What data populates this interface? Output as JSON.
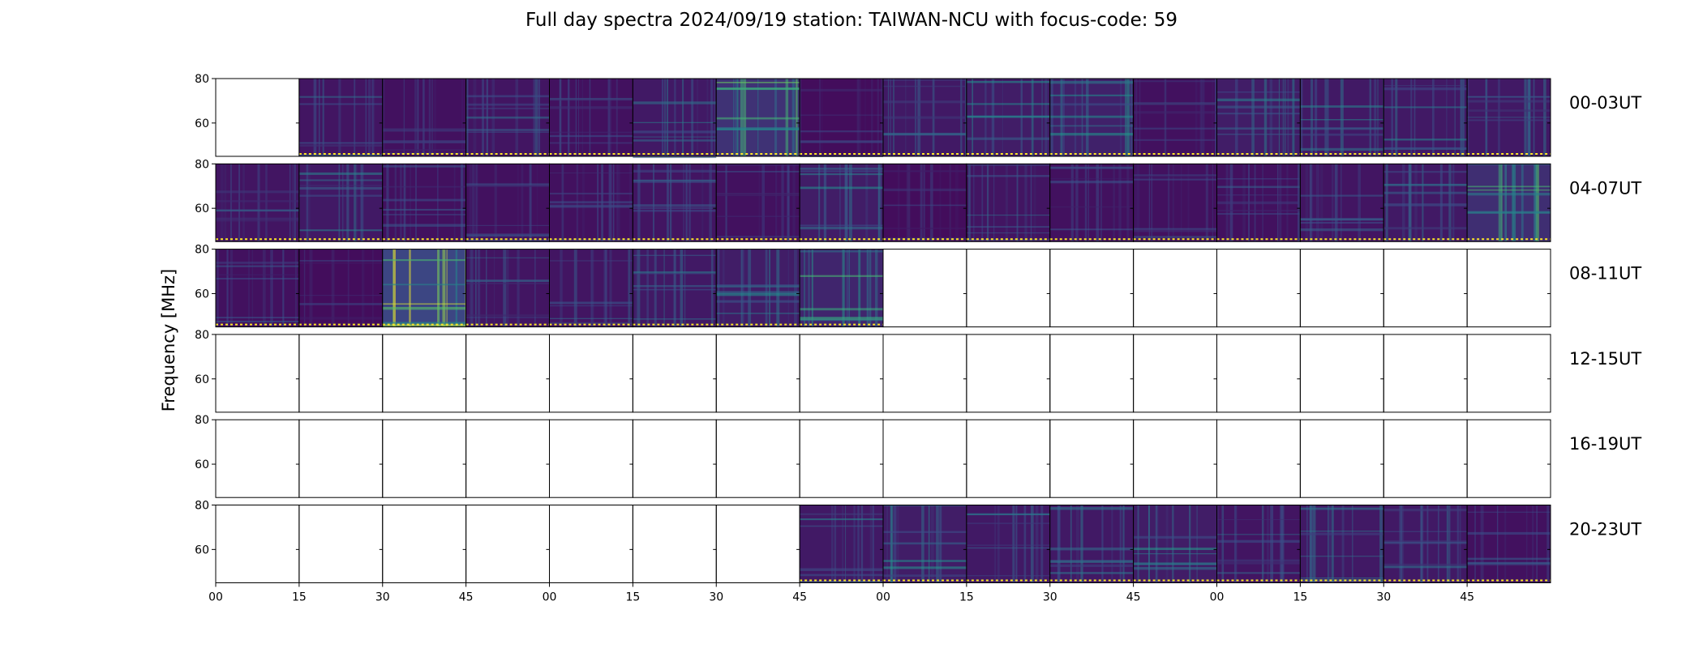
{
  "chart_data": {
    "type": "heatmap",
    "title": "Full day spectra 2024/09/19 station: TAIWAN-NCU with focus-code: 59",
    "ylabel": "Frequency [MHz]",
    "xlabel": "",
    "ylim": [
      45,
      80
    ],
    "yticks": [
      60,
      80
    ],
    "xtick_labels": [
      "00",
      "15",
      "30",
      "45",
      "00",
      "15",
      "30",
      "45",
      "00",
      "15",
      "30",
      "45",
      "00",
      "15",
      "30",
      "45"
    ],
    "colormap": [
      "#440154",
      "#3b528b",
      "#21918c",
      "#5ec962",
      "#fde725"
    ],
    "row_labels": [
      "00-03UT",
      "04-07UT",
      "08-11UT",
      "12-15UT",
      "16-19UT",
      "20-23UT"
    ],
    "panels_per_row": 16,
    "panel_minutes": 15,
    "data_present": [
      [
        0,
        1,
        1,
        1,
        1,
        1,
        1,
        1,
        1,
        1,
        1,
        1,
        1,
        1,
        1,
        1
      ],
      [
        1,
        1,
        1,
        1,
        1,
        1,
        1,
        1,
        1,
        1,
        1,
        1,
        1,
        1,
        1,
        1
      ],
      [
        1,
        1,
        1,
        1,
        1,
        1,
        1,
        1,
        0,
        0,
        0,
        0,
        0,
        0,
        0,
        0
      ],
      [
        0,
        0,
        0,
        0,
        0,
        0,
        0,
        0,
        0,
        0,
        0,
        0,
        0,
        0,
        0,
        0
      ],
      [
        0,
        0,
        0,
        0,
        0,
        0,
        0,
        0,
        0,
        0,
        0,
        0,
        0,
        0,
        0,
        0
      ],
      [
        0,
        0,
        0,
        0,
        0,
        0,
        0,
        1,
        1,
        1,
        1,
        1,
        1,
        1,
        1,
        1
      ]
    ],
    "intensity": [
      [
        0,
        0.25,
        0.2,
        0.25,
        0.2,
        0.3,
        0.6,
        0.15,
        0.3,
        0.35,
        0.4,
        0.2,
        0.35,
        0.3,
        0.3,
        0.3
      ],
      [
        0.25,
        0.3,
        0.2,
        0.2,
        0.2,
        0.25,
        0.2,
        0.35,
        0.15,
        0.25,
        0.2,
        0.2,
        0.2,
        0.25,
        0.3,
        0.55
      ],
      [
        0.2,
        0.15,
        0.85,
        0.25,
        0.25,
        0.3,
        0.35,
        0.45,
        0,
        0,
        0,
        0,
        0,
        0,
        0,
        0
      ],
      [
        0,
        0,
        0,
        0,
        0,
        0,
        0,
        0,
        0,
        0,
        0,
        0,
        0,
        0,
        0,
        0
      ],
      [
        0,
        0,
        0,
        0,
        0,
        0,
        0,
        0,
        0,
        0,
        0,
        0,
        0,
        0,
        0,
        0
      ],
      [
        0,
        0,
        0,
        0,
        0,
        0,
        0,
        0.3,
        0.35,
        0.3,
        0.3,
        0.35,
        0.25,
        0.3,
        0.3,
        0.2
      ]
    ]
  }
}
